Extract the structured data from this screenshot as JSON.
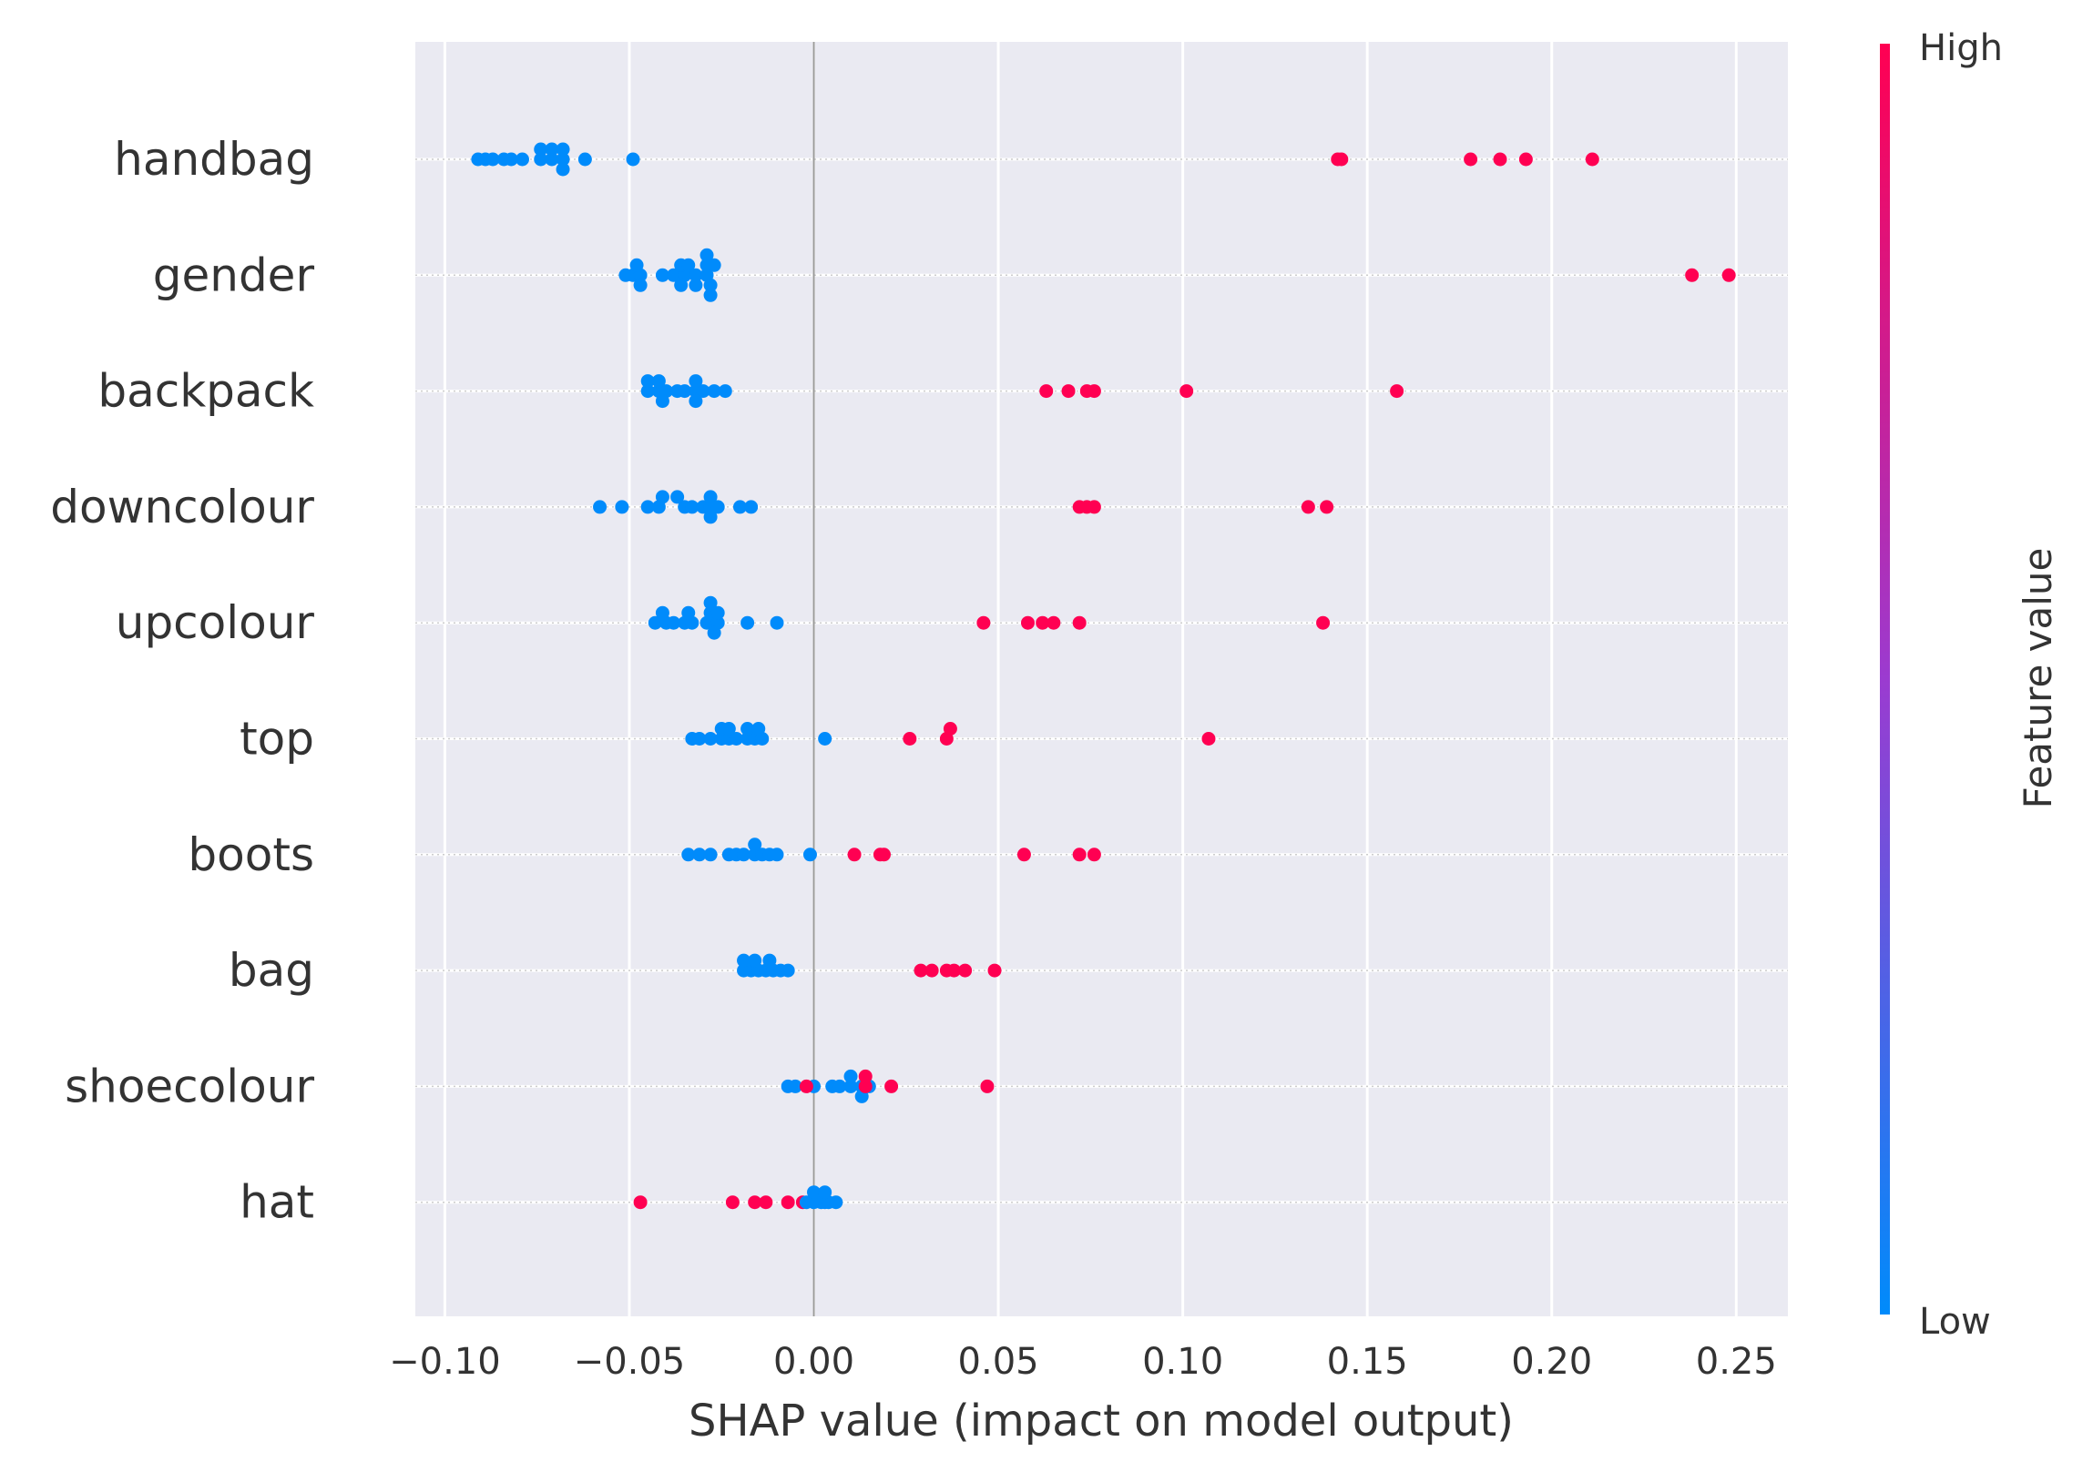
{
  "chart_data": {
    "type": "scatter",
    "subtype": "shap-beeswarm",
    "title": "",
    "xlabel": "SHAP value (impact on model output)",
    "ylabel": "",
    "xlim": [
      -0.108,
      0.264
    ],
    "xticks": [
      -0.1,
      -0.05,
      0.0,
      0.05,
      0.1,
      0.15,
      0.2,
      0.25
    ],
    "xtick_labels": [
      "−0.10",
      "−0.05",
      "0.00",
      "0.05",
      "0.10",
      "0.15",
      "0.20",
      "0.25"
    ],
    "grid": true,
    "colorbar": {
      "label": "Feature value",
      "high_label": "High",
      "low_label": "Low",
      "low_color": "#008bfb",
      "high_color": "#ff0052"
    },
    "features": [
      {
        "name": "handbag",
        "points": [
          {
            "x": -0.091,
            "r": 0,
            "f": 0
          },
          {
            "x": -0.089,
            "r": 0,
            "f": 0
          },
          {
            "x": -0.087,
            "r": 0,
            "f": 0
          },
          {
            "x": -0.084,
            "r": 0,
            "f": 0
          },
          {
            "x": -0.082,
            "r": 0,
            "f": 0
          },
          {
            "x": -0.079,
            "r": 0,
            "f": 0
          },
          {
            "x": -0.074,
            "r": 0,
            "f": 0
          },
          {
            "x": -0.071,
            "r": 0,
            "f": 0
          },
          {
            "x": -0.068,
            "r": 0,
            "f": 0
          },
          {
            "x": -0.062,
            "r": 0,
            "f": 0
          },
          {
            "x": -0.049,
            "r": 0,
            "f": 0
          },
          {
            "x": -0.074,
            "r": 1,
            "f": 0
          },
          {
            "x": -0.071,
            "r": 1,
            "f": 0
          },
          {
            "x": -0.068,
            "r": 1,
            "f": 0
          },
          {
            "x": -0.068,
            "r": -1,
            "f": 0
          },
          {
            "x": 0.142,
            "r": 0,
            "f": 1
          },
          {
            "x": 0.143,
            "r": 0,
            "f": 1
          },
          {
            "x": 0.178,
            "r": 0,
            "f": 1
          },
          {
            "x": 0.186,
            "r": 0,
            "f": 1
          },
          {
            "x": 0.193,
            "r": 0,
            "f": 1
          },
          {
            "x": 0.211,
            "r": 0,
            "f": 1
          }
        ]
      },
      {
        "name": "gender",
        "points": [
          {
            "x": -0.051,
            "r": 0,
            "f": 0
          },
          {
            "x": -0.049,
            "r": 0,
            "f": 0
          },
          {
            "x": -0.047,
            "r": 0,
            "f": 0
          },
          {
            "x": -0.041,
            "r": 0,
            "f": 0
          },
          {
            "x": -0.038,
            "r": 0,
            "f": 0
          },
          {
            "x": -0.035,
            "r": 0,
            "f": 0
          },
          {
            "x": -0.032,
            "r": 0,
            "f": 0
          },
          {
            "x": -0.029,
            "r": 0,
            "f": 0
          },
          {
            "x": -0.048,
            "r": 1,
            "f": 0
          },
          {
            "x": -0.036,
            "r": 1,
            "f": 0
          },
          {
            "x": -0.034,
            "r": 1,
            "f": 0
          },
          {
            "x": -0.029,
            "r": 1,
            "f": 0
          },
          {
            "x": -0.027,
            "r": 1,
            "f": 0
          },
          {
            "x": -0.029,
            "r": 2,
            "f": 0
          },
          {
            "x": -0.047,
            "r": -1,
            "f": 0
          },
          {
            "x": -0.036,
            "r": -1,
            "f": 0
          },
          {
            "x": -0.032,
            "r": -1,
            "f": 0
          },
          {
            "x": -0.028,
            "r": -1,
            "f": 0
          },
          {
            "x": -0.028,
            "r": -2,
            "f": 0
          },
          {
            "x": 0.238,
            "r": 0,
            "f": 1
          },
          {
            "x": 0.248,
            "r": 0,
            "f": 1
          }
        ]
      },
      {
        "name": "backpack",
        "points": [
          {
            "x": -0.045,
            "r": 0,
            "f": 0
          },
          {
            "x": -0.042,
            "r": 0,
            "f": 0
          },
          {
            "x": -0.04,
            "r": 0,
            "f": 0
          },
          {
            "x": -0.037,
            "r": 0,
            "f": 0
          },
          {
            "x": -0.035,
            "r": 0,
            "f": 0
          },
          {
            "x": -0.032,
            "r": 0,
            "f": 0
          },
          {
            "x": -0.03,
            "r": 0,
            "f": 0
          },
          {
            "x": -0.027,
            "r": 0,
            "f": 0
          },
          {
            "x": -0.024,
            "r": 0,
            "f": 0
          },
          {
            "x": -0.045,
            "r": 1,
            "f": 0
          },
          {
            "x": -0.042,
            "r": 1,
            "f": 0
          },
          {
            "x": -0.032,
            "r": 1,
            "f": 0
          },
          {
            "x": -0.041,
            "r": -1,
            "f": 0
          },
          {
            "x": -0.032,
            "r": -1,
            "f": 0
          },
          {
            "x": 0.063,
            "r": 0,
            "f": 1
          },
          {
            "x": 0.069,
            "r": 0,
            "f": 1
          },
          {
            "x": 0.074,
            "r": 0,
            "f": 1
          },
          {
            "x": 0.076,
            "r": 0,
            "f": 1
          },
          {
            "x": 0.101,
            "r": 0,
            "f": 1
          },
          {
            "x": 0.158,
            "r": 0,
            "f": 1
          }
        ]
      },
      {
        "name": "downcolour",
        "points": [
          {
            "x": -0.058,
            "r": 0,
            "f": 0
          },
          {
            "x": -0.052,
            "r": 0,
            "f": 0
          },
          {
            "x": -0.045,
            "r": 0,
            "f": 0
          },
          {
            "x": -0.042,
            "r": 0,
            "f": 0
          },
          {
            "x": -0.035,
            "r": 0,
            "f": 0
          },
          {
            "x": -0.033,
            "r": 0,
            "f": 0
          },
          {
            "x": -0.03,
            "r": 0,
            "f": 0
          },
          {
            "x": -0.028,
            "r": 0,
            "f": 0
          },
          {
            "x": -0.026,
            "r": 0,
            "f": 0
          },
          {
            "x": -0.02,
            "r": 0,
            "f": 0
          },
          {
            "x": -0.017,
            "r": 0,
            "f": 0
          },
          {
            "x": -0.037,
            "r": 1,
            "f": 0
          },
          {
            "x": -0.041,
            "r": 1,
            "f": 0
          },
          {
            "x": -0.028,
            "r": 1,
            "f": 0
          },
          {
            "x": -0.028,
            "r": -1,
            "f": 0
          },
          {
            "x": 0.072,
            "r": 0,
            "f": 1
          },
          {
            "x": 0.074,
            "r": 0,
            "f": 1
          },
          {
            "x": 0.076,
            "r": 0,
            "f": 1
          },
          {
            "x": 0.134,
            "r": 0,
            "f": 1
          },
          {
            "x": 0.139,
            "r": 0,
            "f": 1
          }
        ]
      },
      {
        "name": "upcolour",
        "points": [
          {
            "x": -0.043,
            "r": 0,
            "f": 0
          },
          {
            "x": -0.04,
            "r": 0,
            "f": 0
          },
          {
            "x": -0.038,
            "r": 0,
            "f": 0
          },
          {
            "x": -0.035,
            "r": 0,
            "f": 0
          },
          {
            "x": -0.033,
            "r": 0,
            "f": 0
          },
          {
            "x": -0.029,
            "r": 0,
            "f": 0
          },
          {
            "x": -0.026,
            "r": 0,
            "f": 0
          },
          {
            "x": -0.018,
            "r": 0,
            "f": 0
          },
          {
            "x": -0.01,
            "r": 0,
            "f": 0
          },
          {
            "x": -0.041,
            "r": 1,
            "f": 0
          },
          {
            "x": -0.034,
            "r": 1,
            "f": 0
          },
          {
            "x": -0.028,
            "r": 1,
            "f": 0
          },
          {
            "x": -0.026,
            "r": 1,
            "f": 0
          },
          {
            "x": -0.028,
            "r": 2,
            "f": 0
          },
          {
            "x": -0.027,
            "r": -1,
            "f": 0
          },
          {
            "x": 0.046,
            "r": 0,
            "f": 1
          },
          {
            "x": 0.058,
            "r": 0,
            "f": 1
          },
          {
            "x": 0.062,
            "r": 0,
            "f": 1
          },
          {
            "x": 0.065,
            "r": 0,
            "f": 1
          },
          {
            "x": 0.072,
            "r": 0,
            "f": 1
          },
          {
            "x": 0.138,
            "r": 0,
            "f": 1
          }
        ]
      },
      {
        "name": "top",
        "points": [
          {
            "x": -0.033,
            "r": 0,
            "f": 0
          },
          {
            "x": -0.031,
            "r": 0,
            "f": 0
          },
          {
            "x": -0.028,
            "r": 0,
            "f": 0
          },
          {
            "x": -0.025,
            "r": 0,
            "f": 0
          },
          {
            "x": -0.023,
            "r": 0,
            "f": 0
          },
          {
            "x": -0.021,
            "r": 0,
            "f": 0
          },
          {
            "x": -0.018,
            "r": 0,
            "f": 0
          },
          {
            "x": -0.016,
            "r": 0,
            "f": 0
          },
          {
            "x": -0.014,
            "r": 0,
            "f": 0
          },
          {
            "x": 0.003,
            "r": 0,
            "f": 0
          },
          {
            "x": -0.025,
            "r": 1,
            "f": 0
          },
          {
            "x": -0.023,
            "r": 1,
            "f": 0
          },
          {
            "x": -0.018,
            "r": 1,
            "f": 0
          },
          {
            "x": -0.015,
            "r": 1,
            "f": 0
          },
          {
            "x": 0.026,
            "r": 0,
            "f": 1
          },
          {
            "x": 0.036,
            "r": 0,
            "f": 1
          },
          {
            "x": 0.037,
            "r": 1,
            "f": 1
          },
          {
            "x": 0.107,
            "r": 0,
            "f": 1
          }
        ]
      },
      {
        "name": "boots",
        "points": [
          {
            "x": -0.034,
            "r": 0,
            "f": 0
          },
          {
            "x": -0.031,
            "r": 0,
            "f": 0
          },
          {
            "x": -0.028,
            "r": 0,
            "f": 0
          },
          {
            "x": -0.023,
            "r": 0,
            "f": 0
          },
          {
            "x": -0.021,
            "r": 0,
            "f": 0
          },
          {
            "x": -0.019,
            "r": 0,
            "f": 0
          },
          {
            "x": -0.016,
            "r": 0,
            "f": 0
          },
          {
            "x": -0.014,
            "r": 0,
            "f": 0
          },
          {
            "x": -0.012,
            "r": 0,
            "f": 0
          },
          {
            "x": -0.01,
            "r": 0,
            "f": 0
          },
          {
            "x": -0.001,
            "r": 0,
            "f": 0
          },
          {
            "x": -0.016,
            "r": 1,
            "f": 0
          },
          {
            "x": 0.011,
            "r": 0,
            "f": 1
          },
          {
            "x": 0.018,
            "r": 0,
            "f": 1
          },
          {
            "x": 0.019,
            "r": 0,
            "f": 1
          },
          {
            "x": 0.057,
            "r": 0,
            "f": 1
          },
          {
            "x": 0.072,
            "r": 0,
            "f": 1
          },
          {
            "x": 0.076,
            "r": 0,
            "f": 1
          }
        ]
      },
      {
        "name": "bag",
        "points": [
          {
            "x": -0.019,
            "r": 0,
            "f": 0
          },
          {
            "x": -0.017,
            "r": 0,
            "f": 0
          },
          {
            "x": -0.015,
            "r": 0,
            "f": 0
          },
          {
            "x": -0.013,
            "r": 0,
            "f": 0
          },
          {
            "x": -0.011,
            "r": 0,
            "f": 0
          },
          {
            "x": -0.009,
            "r": 0,
            "f": 0
          },
          {
            "x": -0.007,
            "r": 0,
            "f": 0
          },
          {
            "x": -0.019,
            "r": 1,
            "f": 0
          },
          {
            "x": -0.016,
            "r": 1,
            "f": 0
          },
          {
            "x": -0.012,
            "r": 1,
            "f": 0
          },
          {
            "x": 0.029,
            "r": 0,
            "f": 1
          },
          {
            "x": 0.032,
            "r": 0,
            "f": 1
          },
          {
            "x": 0.036,
            "r": 0,
            "f": 1
          },
          {
            "x": 0.038,
            "r": 0,
            "f": 1
          },
          {
            "x": 0.041,
            "r": 0,
            "f": 1
          },
          {
            "x": 0.049,
            "r": 0,
            "f": 1
          }
        ]
      },
      {
        "name": "shoecolour",
        "points": [
          {
            "x": -0.007,
            "r": 0,
            "f": 0
          },
          {
            "x": -0.005,
            "r": 0,
            "f": 0
          },
          {
            "x": 0.0,
            "r": 0,
            "f": 0
          },
          {
            "x": 0.005,
            "r": 0,
            "f": 0
          },
          {
            "x": 0.007,
            "r": 0,
            "f": 0
          },
          {
            "x": 0.01,
            "r": 0,
            "f": 0
          },
          {
            "x": 0.013,
            "r": 0,
            "f": 0
          },
          {
            "x": 0.015,
            "r": 0,
            "f": 0
          },
          {
            "x": 0.01,
            "r": 1,
            "f": 0
          },
          {
            "x": 0.013,
            "r": -1,
            "f": 0
          },
          {
            "x": -0.002,
            "r": 0,
            "f": 1
          },
          {
            "x": 0.014,
            "r": 0,
            "f": 1
          },
          {
            "x": 0.021,
            "r": 0,
            "f": 1
          },
          {
            "x": 0.014,
            "r": 1,
            "f": 1
          },
          {
            "x": 0.047,
            "r": 0,
            "f": 1
          }
        ]
      },
      {
        "name": "hat",
        "points": [
          {
            "x": -0.047,
            "r": 0,
            "f": 1
          },
          {
            "x": -0.022,
            "r": 0,
            "f": 1
          },
          {
            "x": -0.016,
            "r": 0,
            "f": 1
          },
          {
            "x": -0.013,
            "r": 0,
            "f": 1
          },
          {
            "x": -0.007,
            "r": 0,
            "f": 1
          },
          {
            "x": -0.003,
            "r": 0,
            "f": 1
          },
          {
            "x": -0.002,
            "r": 0,
            "f": 0
          },
          {
            "x": 0.0,
            "r": 0,
            "f": 0
          },
          {
            "x": 0.002,
            "r": 0,
            "f": 0
          },
          {
            "x": 0.003,
            "r": 0,
            "f": 0
          },
          {
            "x": 0.004,
            "r": 0,
            "f": 0
          },
          {
            "x": 0.006,
            "r": 0,
            "f": 0
          },
          {
            "x": 0.0,
            "r": 1,
            "f": 0
          },
          {
            "x": 0.003,
            "r": 1,
            "f": 0
          }
        ]
      }
    ]
  }
}
